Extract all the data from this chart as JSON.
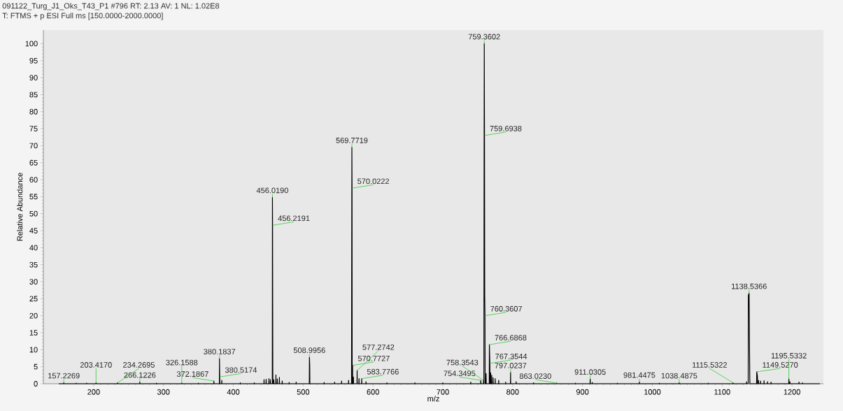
{
  "chart_data": {
    "type": "line",
    "title": "091122_Turg_J1_Oks_T43_P1 #796 RT: 2.13 AV: 1 NL: 1.02E8",
    "subtitle": "T: FTMS + p ESI Full ms [150.0000-2000.0000]",
    "xlabel": "m/z",
    "ylabel": "Relative Abundance",
    "color": "#000000",
    "x": [
      150,
      157.0,
      157.2269,
      157.4,
      174.8,
      175,
      175.2,
      189.8,
      190,
      190.2,
      203.2,
      203.417,
      203.6,
      234.0,
      234.2695,
      234.5,
      265.9,
      266.1226,
      266.3,
      289.8,
      290,
      290.2,
      325.9,
      326.1588,
      326.4,
      349.8,
      350,
      350.2,
      372.0,
      372.1867,
      372.4,
      380.0,
      380.1837,
      380.5174,
      380.7,
      383.3,
      383.5,
      383.7,
      409.8,
      410,
      410.2,
      429.8,
      430,
      430.2,
      443.8,
      444,
      444.2,
      446.8,
      447,
      447.2,
      450.8,
      451,
      451.2,
      452.8,
      453,
      453.2,
      455.8,
      456.019,
      456.2191,
      456.4,
      456.6,
      457.8,
      458,
      458.2,
      460.8,
      461,
      461.2,
      462.8,
      463,
      463.2,
      465.8,
      466,
      466.2,
      469.8,
      470,
      470.2,
      479.8,
      480,
      480.2,
      489.8,
      490,
      490.2,
      508.8,
      508.9956,
      509.4,
      509.6,
      529.8,
      530,
      530.2,
      544.8,
      545,
      545.2,
      554.8,
      555,
      555.2,
      564.8,
      565,
      565.2,
      569.3,
      569.5,
      569.7719,
      570.0222,
      570.2,
      570.6,
      570.7727,
      570.9,
      571.8,
      572,
      572.2,
      577.1,
      577.2742,
      577.5,
      579.8,
      580,
      580.2,
      583.6,
      583.7766,
      584.0,
      589.8,
      590,
      590.2,
      619.8,
      620,
      620.2,
      659.8,
      660,
      660.2,
      699.8,
      700,
      700.2,
      739.8,
      740,
      740.2,
      754.1,
      754.3495,
      754.6,
      758.1,
      758.3543,
      758.6,
      758.8,
      759.0,
      759.3602,
      759.6938,
      760.0,
      760.3607,
      760.6,
      761.8,
      762,
      762.2,
      766.5,
      766.6868,
      767.3544,
      767.6,
      768.3,
      768.5,
      768.7,
      769.8,
      770,
      770.2,
      771.8,
      772,
      772.2,
      774.8,
      775,
      775.2,
      779.8,
      780,
      780.2,
      789.8,
      790,
      790.2,
      796.8,
      797.0237,
      797.2,
      804.8,
      805,
      805.2,
      829.8,
      830,
      830.2,
      862.8,
      863.023,
      863.2,
      889.8,
      890,
      890.2,
      910.8,
      911.0305,
      911.2,
      913.8,
      914,
      914.2,
      949.8,
      950,
      950.2,
      981.2,
      981.4475,
      981.7,
      1009.8,
      1010,
      1010.2,
      1038.3,
      1038.4875,
      1038.7,
      1079.8,
      1080,
      1080.2,
      1115.3,
      1115.5322,
      1115.7,
      1134.8,
      1135,
      1135.2,
      1137.3,
      1137.5,
      1138.5366,
      1139.5,
      1139.7,
      1149.3,
      1149.527,
      1150.5,
      1150.7,
      1151.8,
      1152,
      1152.2,
      1154.8,
      1155,
      1155.2,
      1159.8,
      1160,
      1160.2,
      1164.8,
      1165,
      1165.2,
      1169.8,
      1170,
      1170.2,
      1195.3,
      1195.5332,
      1195.7,
      1196.8,
      1197,
      1197.2,
      1209.8,
      1210,
      1210.2,
      1214.8,
      1215,
      1215.2,
      1240
    ],
    "values": [
      0,
      0,
      0.3,
      0,
      0,
      0.2,
      0,
      0,
      0.2,
      0,
      0,
      0.3,
      0,
      0,
      0.3,
      0,
      0,
      0.5,
      0,
      0,
      0.2,
      0,
      0,
      0.2,
      0,
      0,
      0.2,
      0,
      0,
      0.8,
      0,
      0,
      7.4,
      2.0,
      0,
      0,
      1.0,
      0,
      0,
      0.3,
      0,
      0,
      0.3,
      0,
      0,
      1.2,
      0,
      0,
      1.3,
      0,
      0,
      1.5,
      0,
      0,
      1.2,
      0,
      0,
      54.8,
      46.6,
      24,
      0,
      0,
      1.2,
      0,
      0,
      2.6,
      0,
      0,
      1.4,
      0,
      0,
      1.9,
      0,
      0,
      0.8,
      0,
      0,
      0.4,
      0,
      0,
      0.5,
      0,
      0,
      7.8,
      5.5,
      0,
      0,
      0.4,
      0,
      0,
      0.5,
      0,
      0,
      0.8,
      0,
      0,
      1.0,
      0,
      0,
      35,
      69.5,
      57.5,
      0,
      0,
      5.4,
      0,
      0,
      2.0,
      0,
      0,
      3.9,
      0,
      0,
      1.5,
      0,
      0,
      1.5,
      0,
      0,
      0.6,
      0,
      0,
      0.3,
      0,
      0,
      0.3,
      0,
      0,
      0.3,
      0,
      0,
      0.5,
      0,
      0,
      1.0,
      0,
      0,
      1.0,
      0,
      0,
      50,
      100,
      73,
      26,
      20,
      0,
      0,
      3,
      0,
      0,
      11.5,
      6,
      0,
      0,
      3.2,
      0,
      0,
      2.5,
      0,
      0,
      1.8,
      0,
      0,
      1.5,
      0,
      0,
      1.0,
      0,
      0,
      0.5,
      0,
      0,
      3.3,
      0,
      0,
      0.6,
      0,
      0,
      0.3,
      0,
      0,
      0.2,
      0,
      0,
      0.2,
      0,
      0,
      1.4,
      0,
      0,
      0.4,
      0,
      0,
      0.2,
      0,
      0,
      0.5,
      0,
      0,
      0.2,
      0,
      0,
      0.3,
      0,
      0,
      0.2,
      0,
      0,
      0.3,
      0,
      0,
      0.6,
      0,
      0,
      26,
      26.6,
      2.5,
      0,
      0,
      3.5,
      2.3,
      0,
      0,
      1.0,
      0,
      0,
      0.8,
      0,
      0,
      0.9,
      0,
      0,
      0.6,
      0,
      0,
      0.5,
      0,
      0,
      1.4,
      0,
      0,
      0.6,
      0,
      0,
      0.5,
      0,
      0,
      0.3,
      0,
      0
    ],
    "annotations": [
      {
        "text": "157.2269",
        "x": 157.2269,
        "y": 0.3
      },
      {
        "text": "203.4170",
        "x": 203.417,
        "y": 0.3
      },
      {
        "text": "234.2695",
        "x": 234.2695,
        "y": 0.3
      },
      {
        "text": "266.1226",
        "x": 266.1226,
        "y": 0.5
      },
      {
        "text": "326.1588",
        "x": 326.1588,
        "y": 0.2
      },
      {
        "text": "372.1867",
        "x": 372.1867,
        "y": 0.8
      },
      {
        "text": "380.1837",
        "x": 380.1837,
        "y": 7.4
      },
      {
        "text": "380.5174",
        "x": 380.5174,
        "y": 2.0
      },
      {
        "text": "456.0190",
        "x": 456.019,
        "y": 54.8
      },
      {
        "text": "456.2191",
        "x": 456.2191,
        "y": 46.6
      },
      {
        "text": "508.9956",
        "x": 508.9956,
        "y": 7.8
      },
      {
        "text": "569.7719",
        "x": 569.7719,
        "y": 69.5
      },
      {
        "text": "570.0222",
        "x": 570.0222,
        "y": 57.5
      },
      {
        "text": "570.7727",
        "x": 570.7727,
        "y": 5.4
      },
      {
        "text": "577.2742",
        "x": 577.2742,
        "y": 3.9
      },
      {
        "text": "583.7766",
        "x": 583.7766,
        "y": 1.5
      },
      {
        "text": "754.3495",
        "x": 754.3495,
        "y": 1.0
      },
      {
        "text": "758.3543",
        "x": 758.3543,
        "y": 1.0
      },
      {
        "text": "759.3602",
        "x": 759.3602,
        "y": 100
      },
      {
        "text": "759.6938",
        "x": 759.6938,
        "y": 73
      },
      {
        "text": "760.3607",
        "x": 760.3607,
        "y": 20
      },
      {
        "text": "766.6868",
        "x": 766.6868,
        "y": 11.5
      },
      {
        "text": "767.3544",
        "x": 767.3544,
        "y": 6
      },
      {
        "text": "797.0237",
        "x": 797.0237,
        "y": 3.3
      },
      {
        "text": "863.0230",
        "x": 863.023,
        "y": 0.2
      },
      {
        "text": "911.0305",
        "x": 911.0305,
        "y": 1.4
      },
      {
        "text": "981.4475",
        "x": 981.4475,
        "y": 0.5
      },
      {
        "text": "1038.4875",
        "x": 1038.4875,
        "y": 0.3
      },
      {
        "text": "1115.5322",
        "x": 1115.5322,
        "y": 0.3
      },
      {
        "text": "1138.5366",
        "x": 1138.5366,
        "y": 26.6
      },
      {
        "text": "1149.5270",
        "x": 1149.527,
        "y": 3.5
      },
      {
        "text": "1195.5332",
        "x": 1195.5332,
        "y": 1.4
      }
    ],
    "xlim": [
      128,
      1245
    ],
    "ylim": [
      0,
      104
    ],
    "xticks": [
      200,
      300,
      400,
      500,
      600,
      700,
      800,
      900,
      1000,
      1100,
      1200
    ],
    "yticks": [
      0,
      5,
      10,
      15,
      20,
      25,
      30,
      35,
      40,
      45,
      50,
      55,
      60,
      65,
      70,
      75,
      80,
      85,
      90,
      95,
      100
    ]
  }
}
